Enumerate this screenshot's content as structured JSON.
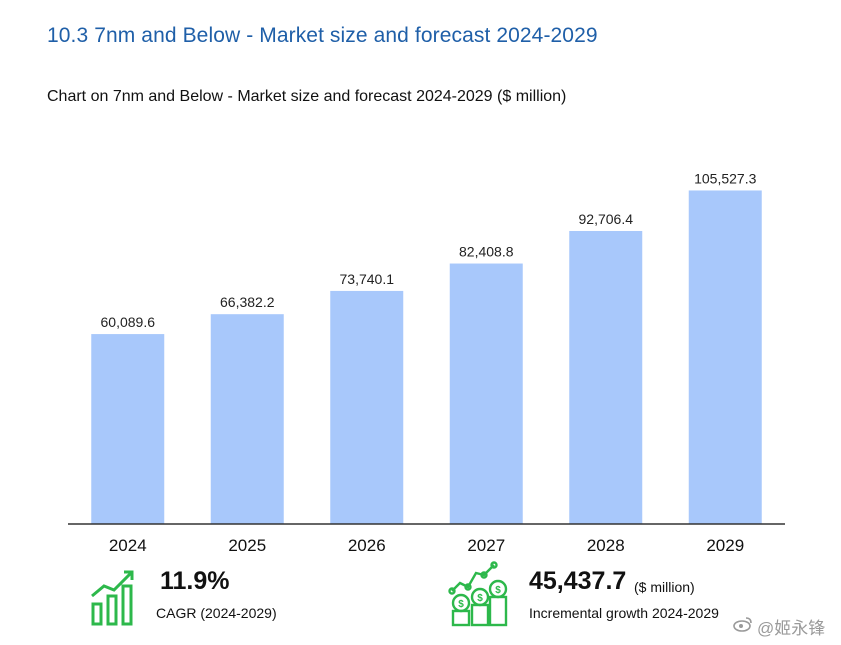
{
  "header": {
    "section_title": "10.3 7nm and Below - Market size and forecast 2024-2029",
    "chart_title": "Chart on 7nm and Below - Market size and forecast 2024-2029 ($ million)"
  },
  "chart_data": {
    "type": "bar",
    "title": "Chart on 7nm and Below - Market size and forecast 2024-2029 ($ million)",
    "categories": [
      "2024",
      "2025",
      "2026",
      "2027",
      "2028",
      "2029"
    ],
    "values": [
      60089.6,
      66382.2,
      73740.1,
      82408.8,
      92706.4,
      105527.3
    ],
    "value_labels": [
      "60,089.6",
      "66,382.2",
      "73,740.1",
      "82,408.8",
      "92,706.4",
      "105,527.3"
    ],
    "xlabel": "",
    "ylabel": "",
    "ylim": [
      0,
      112000
    ],
    "bar_color": "#a8c8fb",
    "grid": false,
    "legend": "none"
  },
  "stats": {
    "cagr": {
      "value": "11.9%",
      "caption": "CAGR (2024-2029)",
      "icon": "bar-growth-icon"
    },
    "incremental": {
      "value": "45,437.7",
      "unit": "($ million)",
      "caption": "Incremental growth 2024-2029",
      "icon": "money-growth-icon"
    }
  },
  "watermark": {
    "text": "@姬永锋",
    "icon": "weibo-icon"
  },
  "colors": {
    "accent_green": "#2db84b",
    "title_blue": "#1f5fa8"
  }
}
